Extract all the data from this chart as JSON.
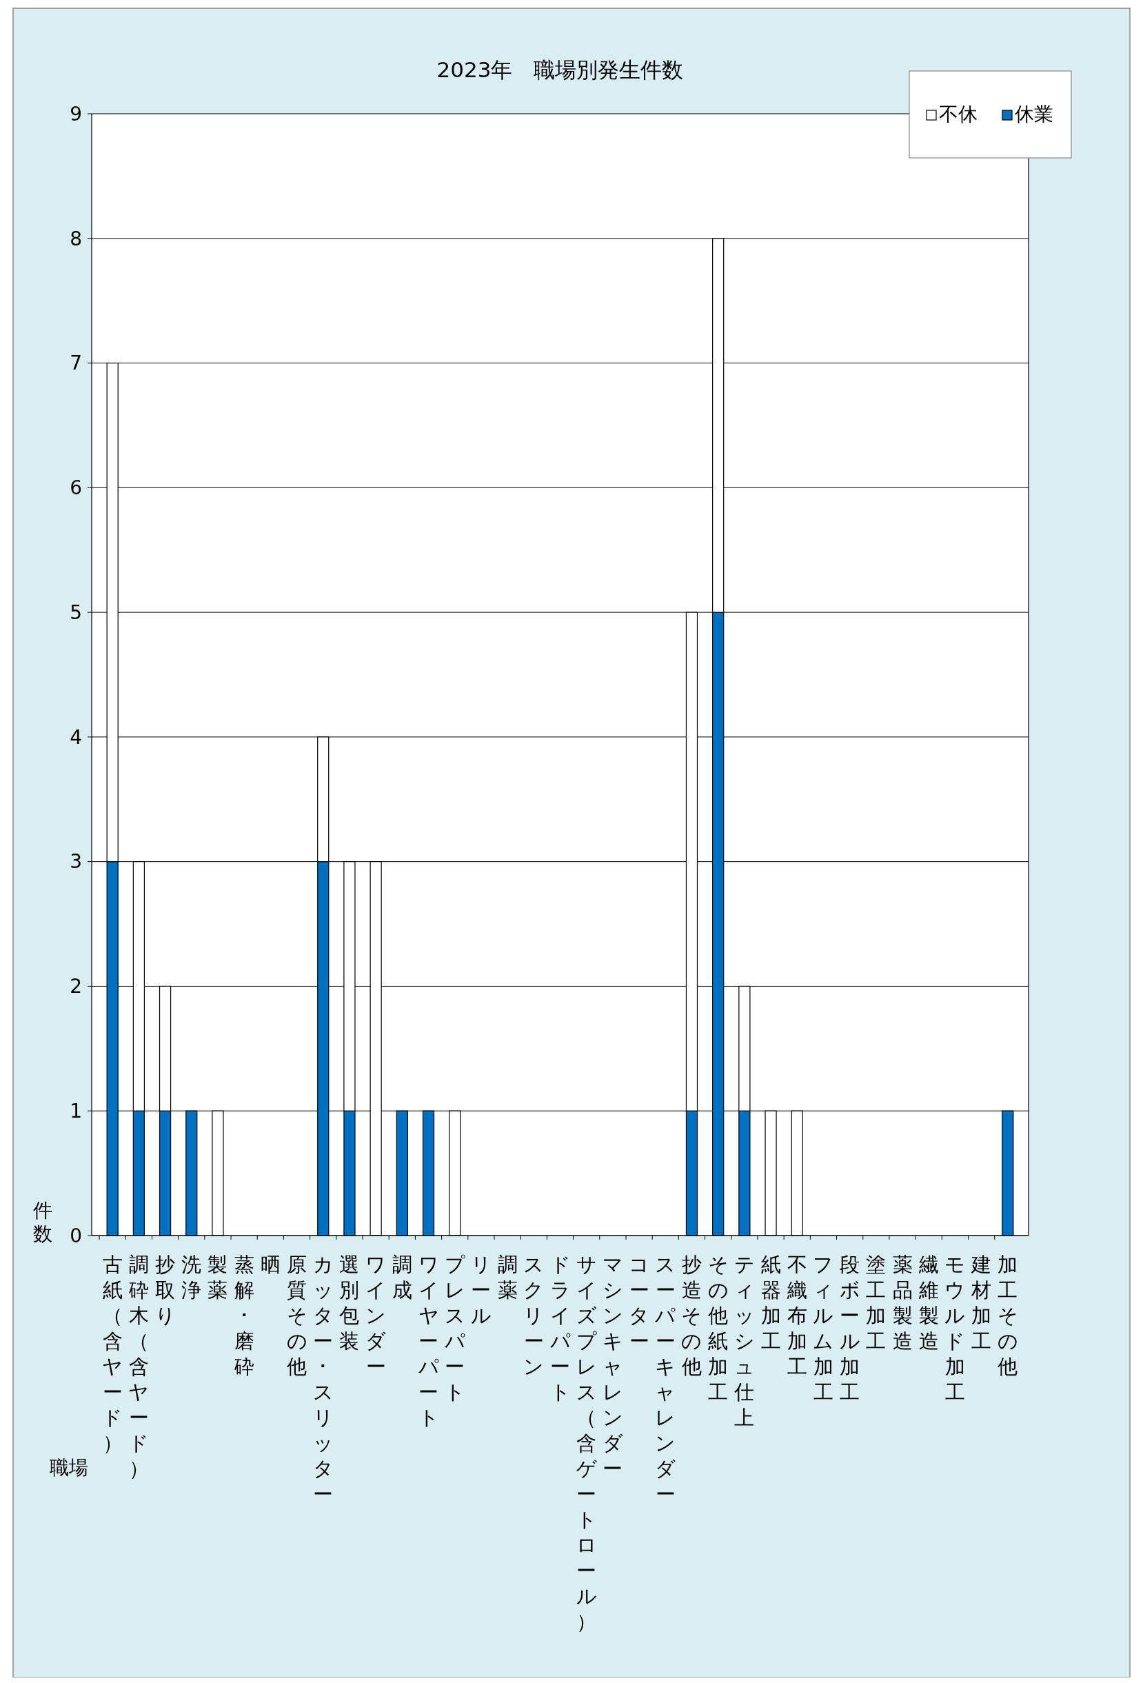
{
  "chart_data": {
    "type": "bar",
    "title": "2023年　職場別発生件数",
    "xlabel": "職場",
    "ylabel": "件数",
    "categories": [
      "古紙（含ヤード）",
      "調砕木（含ヤード）",
      "抄取り",
      "洗浄",
      "製薬",
      "蒸解･磨砕",
      "晒",
      "原質その他",
      "カッター･スリッター",
      "選別包装",
      "ワインダー",
      "調成",
      "ワイヤーパート",
      "プレスパート",
      "リール",
      "調薬",
      "スクリーン",
      "ドライパート",
      "サイズプレス（含ゲートロール）",
      "マシンキャレンダー",
      "コーター",
      "スーパーキャレンダー",
      "抄造その他",
      "その他紙加工",
      "ティッシュ仕上",
      "紙器加工",
      "不織布加工",
      "フィルム加工",
      "段ボール加工",
      "塗工加工",
      "薬品製造",
      "繊維製造",
      "モウルド加工",
      "建材加工",
      "加工その他"
    ],
    "series": [
      {
        "name": "休業",
        "color": "#0070c0",
        "values": [
          3,
          1,
          1,
          1,
          0,
          0,
          0,
          0,
          3,
          1,
          0,
          1,
          1,
          0,
          0,
          0,
          0,
          0,
          0,
          0,
          0,
          0,
          1,
          5,
          1,
          0,
          0,
          0,
          0,
          0,
          0,
          0,
          0,
          0,
          1
        ]
      },
      {
        "name": "不休",
        "color": "#ffffff",
        "values": [
          4,
          2,
          1,
          0,
          1,
          0,
          0,
          0,
          1,
          2,
          3,
          0,
          0,
          1,
          0,
          0,
          0,
          0,
          0,
          0,
          0,
          0,
          4,
          3,
          1,
          1,
          1,
          0,
          0,
          0,
          0,
          0,
          0,
          0,
          0
        ]
      }
    ],
    "stacked": true,
    "ylim": [
      0,
      9
    ],
    "yticks": [
      0,
      1,
      2,
      3,
      4,
      5,
      6,
      7,
      8,
      9
    ],
    "grid": "y",
    "legend": "top right"
  }
}
